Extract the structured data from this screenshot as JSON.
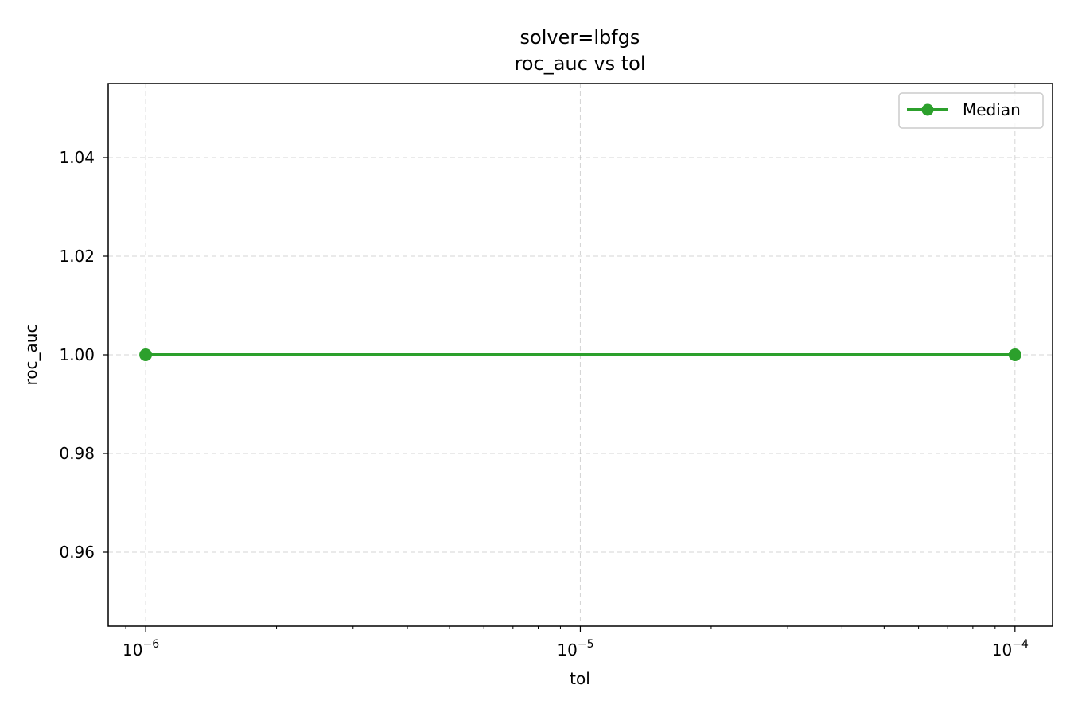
{
  "chart_data": {
    "type": "line",
    "title_line1": "solver=lbfgs",
    "title_line2": "roc_auc vs tol",
    "xlabel": "tol",
    "ylabel": "roc_auc",
    "xscale": "log",
    "xlim": [
      8.2e-07,
      0.000122
    ],
    "ylim": [
      0.945,
      1.055
    ],
    "grid": true,
    "legend_position": "top-right",
    "x_ticks": [
      {
        "value": 1e-06,
        "base": "10",
        "exp": "−6"
      },
      {
        "value": 1e-05,
        "base": "10",
        "exp": "−5"
      },
      {
        "value": 0.0001,
        "base": "10",
        "exp": "−4"
      }
    ],
    "y_ticks": [
      {
        "value": 0.96,
        "label": "0.96"
      },
      {
        "value": 0.98,
        "label": "0.98"
      },
      {
        "value": 1.0,
        "label": "1.00"
      },
      {
        "value": 1.02,
        "label": "1.02"
      },
      {
        "value": 1.04,
        "label": "1.04"
      }
    ],
    "series": [
      {
        "name": "Median",
        "color": "#2ca02c",
        "marker": "circle",
        "x": [
          1e-06,
          0.0001
        ],
        "y": [
          1.0,
          1.0
        ]
      }
    ]
  }
}
